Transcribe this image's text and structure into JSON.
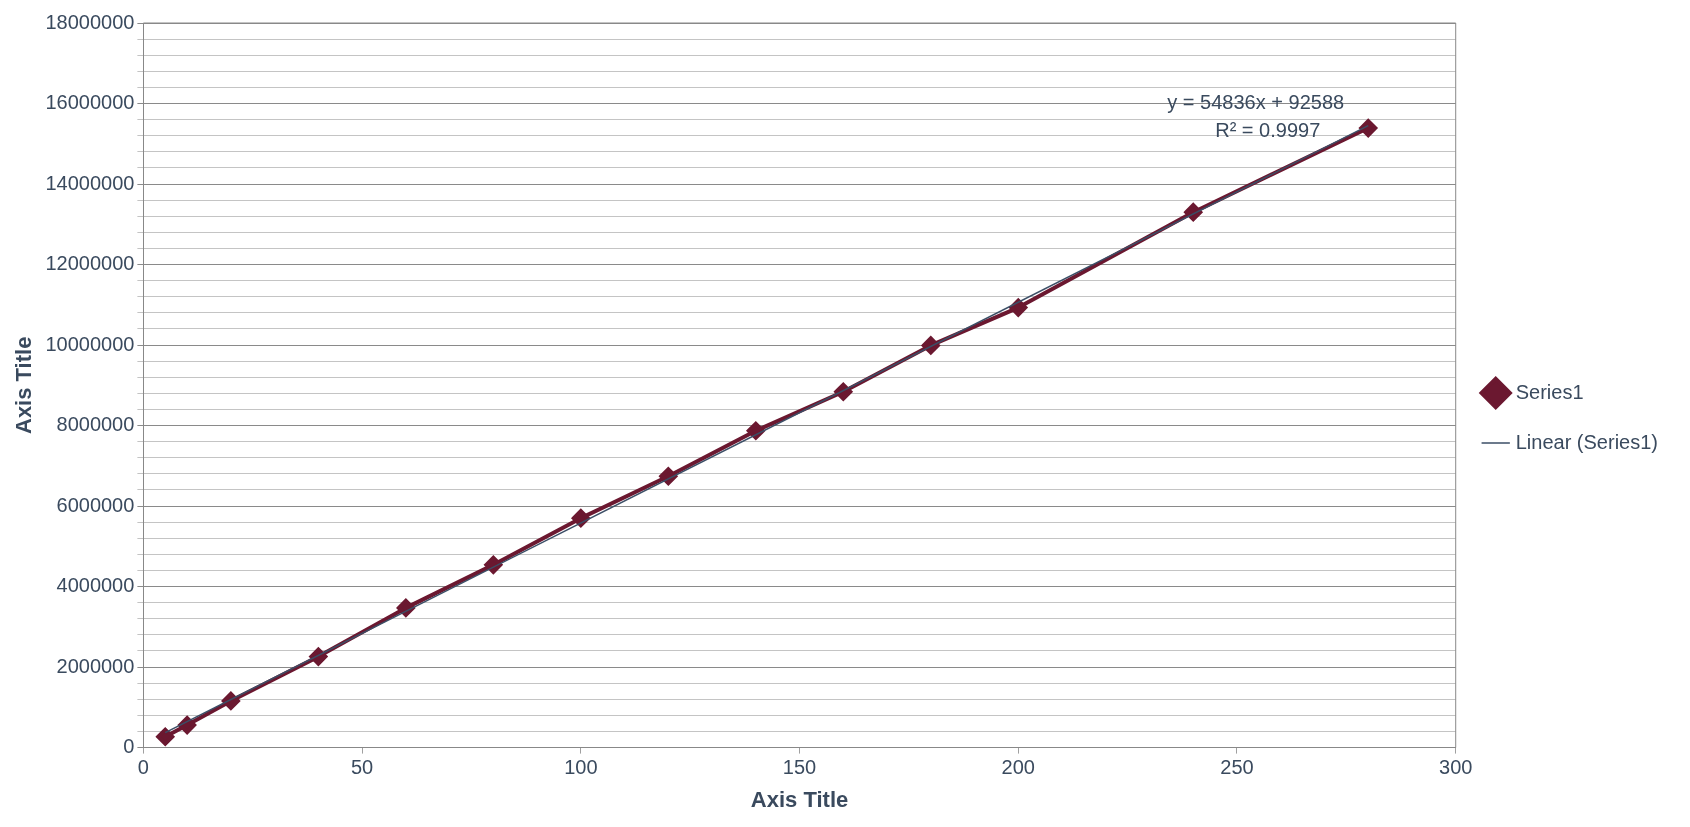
{
  "chart_data": {
    "type": "line",
    "xlabel": "Axis Title",
    "ylabel": "Axis Title",
    "xlim": [
      0,
      300
    ],
    "xticks": [
      0,
      50,
      100,
      150,
      200,
      250,
      300
    ],
    "ylim": [
      0,
      18000000
    ],
    "yticks": [
      0,
      {
        "value": 400000,
        "label": null
      },
      {
        "value": 800000,
        "label": null
      },
      {
        "value": 1200000,
        "label": null
      },
      {
        "value": 1600000,
        "label": null
      },
      2000000,
      {
        "value": 2400000,
        "label": null
      },
      {
        "value": 2800000,
        "label": null
      },
      {
        "value": 3200000,
        "label": null
      },
      {
        "value": 3600000,
        "label": null
      },
      4000000,
      {
        "value": 4400000,
        "label": null
      },
      {
        "value": 4800000,
        "label": null
      },
      {
        "value": 5200000,
        "label": null
      },
      {
        "value": 5600000,
        "label": null
      },
      6000000,
      {
        "value": 6400000,
        "label": null
      },
      {
        "value": 6800000,
        "label": null
      },
      {
        "value": 7200000,
        "label": null
      },
      {
        "value": 7600000,
        "label": null
      },
      8000000,
      {
        "value": 8400000,
        "label": null
      },
      {
        "value": 8800000,
        "label": null
      },
      {
        "value": 9200000,
        "label": null
      },
      {
        "value": 9600000,
        "label": null
      },
      10000000,
      {
        "value": 10400000,
        "label": null
      },
      {
        "value": 10800000,
        "label": null
      },
      {
        "value": 11200000,
        "label": null
      },
      {
        "value": 11600000,
        "label": null
      },
      12000000,
      {
        "value": 12400000,
        "label": null
      },
      {
        "value": 12800000,
        "label": null
      },
      {
        "value": 13200000,
        "label": null
      },
      {
        "value": 13600000,
        "label": null
      },
      14000000,
      {
        "value": 14400000,
        "label": null
      },
      {
        "value": 14800000,
        "label": null
      },
      {
        "value": 15200000,
        "label": null
      },
      {
        "value": 15600000,
        "label": null
      },
      16000000,
      {
        "value": 16400000,
        "label": null
      },
      {
        "value": 16800000,
        "label": null
      },
      {
        "value": 17200000,
        "label": null
      },
      {
        "value": 17600000,
        "label": null
      },
      18000000
    ],
    "grid": "y",
    "legend": "right",
    "x": [
      5,
      10,
      20,
      40,
      60,
      80,
      100,
      120,
      140,
      160,
      180,
      200,
      240,
      280
    ],
    "series": [
      {
        "name": "Series1",
        "color": "#6b1830",
        "marker": "diamond",
        "values": [
          270000,
          560000,
          1160000,
          2260000,
          3470000,
          4540000,
          5700000,
          6740000,
          7870000,
          8840000,
          9990000,
          10930000,
          13300000,
          15390000
        ]
      },
      {
        "name": "Linear (Series1)",
        "color": "#3b4e66",
        "marker": "none",
        "x": [
          5,
          280
        ],
        "values": [
          370000,
          15450000
        ]
      }
    ],
    "annotations": [
      "y = 54836x + 92588",
      "R² = 0.9997"
    ]
  }
}
